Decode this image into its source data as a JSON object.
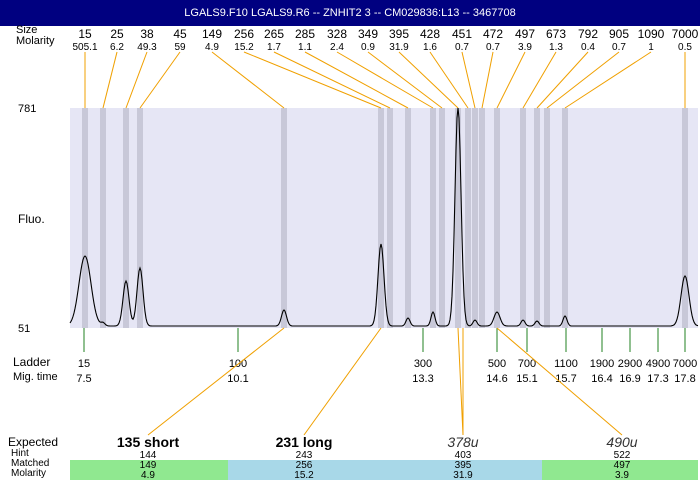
{
  "title": "LGALS9.F10  LGALS9.R6 -- ZNHIT2 3 -- CM029836:L13 -- 3467708",
  "header_labels": {
    "size_label": "Size",
    "molarity_label": "Molarity"
  },
  "axis": {
    "y_label": "Fluo.",
    "y_max_label": "781",
    "y_min_label": "51"
  },
  "ladder_labels": {
    "ladder": "Ladder",
    "migtime": "Mig. time"
  },
  "bottom_labels": {
    "expected": "Expected",
    "hint": "Hint",
    "matched": "Matched",
    "molarity": "Molarity"
  },
  "chart_data": {
    "type": "line",
    "ylim": [
      51,
      781
    ],
    "peaks": [
      {
        "size": "15",
        "molarity": "505.1"
      },
      {
        "size": "25",
        "molarity": "6.2"
      },
      {
        "size": "38",
        "molarity": "49.3"
      },
      {
        "size": "45",
        "molarity": "59"
      },
      {
        "size": "149",
        "molarity": "4.9"
      },
      {
        "size": "256",
        "molarity": "15.2"
      },
      {
        "size": "265",
        "molarity": "1.7"
      },
      {
        "size": "285",
        "molarity": "1.1"
      },
      {
        "size": "328",
        "molarity": "2.4"
      },
      {
        "size": "349",
        "molarity": "0.9"
      },
      {
        "size": "395",
        "molarity": "31.9"
      },
      {
        "size": "428",
        "molarity": "1.6"
      },
      {
        "size": "451",
        "molarity": "0.7"
      },
      {
        "size": "472",
        "molarity": "0.7"
      },
      {
        "size": "497",
        "molarity": "3.9"
      },
      {
        "size": "673",
        "molarity": "1.3"
      },
      {
        "size": "792",
        "molarity": "0.4"
      },
      {
        "size": "905",
        "molarity": "0.7"
      },
      {
        "size": "1090",
        "molarity": "1"
      },
      {
        "size": "7000",
        "molarity": "0.5"
      }
    ],
    "ladder": [
      {
        "size": "15",
        "time": "7.5"
      },
      {
        "size": "100",
        "time": "10.1"
      },
      {
        "size": "300",
        "time": "13.3"
      },
      {
        "size": "500",
        "time": "14.6"
      },
      {
        "size": "700",
        "time": "15.1"
      },
      {
        "size": "1100",
        "time": "15.7"
      },
      {
        "size": "1900",
        "time": "16.4"
      },
      {
        "size": "2900",
        "time": "16.9"
      },
      {
        "size": "4900",
        "time": "17.3"
      },
      {
        "size": "7000",
        "time": "17.8"
      }
    ],
    "expected": [
      {
        "label": "135 short",
        "hint": "144",
        "matched": "149",
        "molarity": "4.9",
        "style": "bold"
      },
      {
        "label": "231 long",
        "hint": "243",
        "matched": "256",
        "molarity": "15.2",
        "style": "bold"
      },
      {
        "label": "378u",
        "hint": "403",
        "matched": "395",
        "molarity": "31.9",
        "style": "italic"
      },
      {
        "label": "490u",
        "hint": "522",
        "matched": "497",
        "molarity": "3.9",
        "style": "italic"
      }
    ],
    "colors": {
      "band": "#e6e6f5",
      "peakband": "#c8c8d8",
      "connector": "#f0a000",
      "ladder_tick": "#208020",
      "trace": "#000000",
      "green": "#90e890",
      "blue": "#a8d8e8"
    }
  }
}
